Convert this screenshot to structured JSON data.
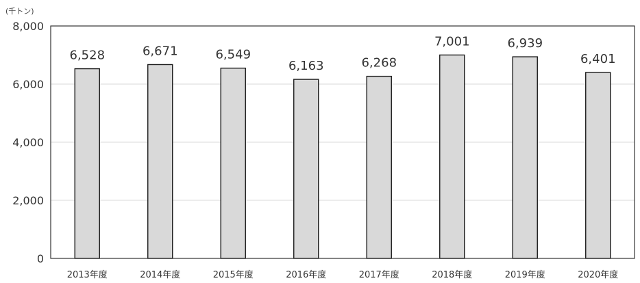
{
  "chart_data": {
    "type": "bar",
    "unit_label": "(千トン)",
    "categories": [
      "2013年度",
      "2014年度",
      "2015年度",
      "2016年度",
      "2017年度",
      "2018年度",
      "2019年度",
      "2020年度"
    ],
    "values": [
      6528,
      6671,
      6549,
      6163,
      6268,
      7001,
      6939,
      6401
    ],
    "value_labels": [
      "6,528",
      "6,671",
      "6,549",
      "6,163",
      "6,268",
      "7,001",
      "6,939",
      "6,401"
    ],
    "yticks": [
      0,
      2000,
      4000,
      6000,
      8000
    ],
    "ytick_labels": [
      "0",
      "2,000",
      "4,000",
      "6,000",
      "8,000"
    ],
    "ylim": [
      0,
      8000
    ],
    "grid": true,
    "bar_color": "#d9d9d9",
    "bar_edge_color": "#1a1a1a",
    "grid_color": "#d9d9d9",
    "axis_color": "#333333"
  }
}
